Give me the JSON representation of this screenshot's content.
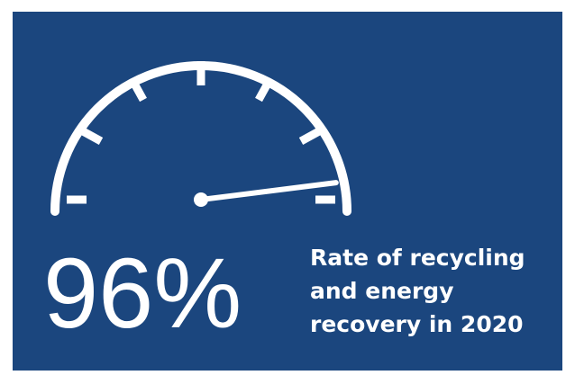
{
  "stat": {
    "value": "96%",
    "level_percent": 96,
    "caption_lines": [
      "Rate of recycling",
      "and energy",
      "recovery in 2020"
    ]
  },
  "colors": {
    "panel_background": "#1b467e",
    "foreground": "#ffffff",
    "outer_background": "#ffffff"
  },
  "icons": {
    "gauge": "speedometer-gauge-icon"
  }
}
